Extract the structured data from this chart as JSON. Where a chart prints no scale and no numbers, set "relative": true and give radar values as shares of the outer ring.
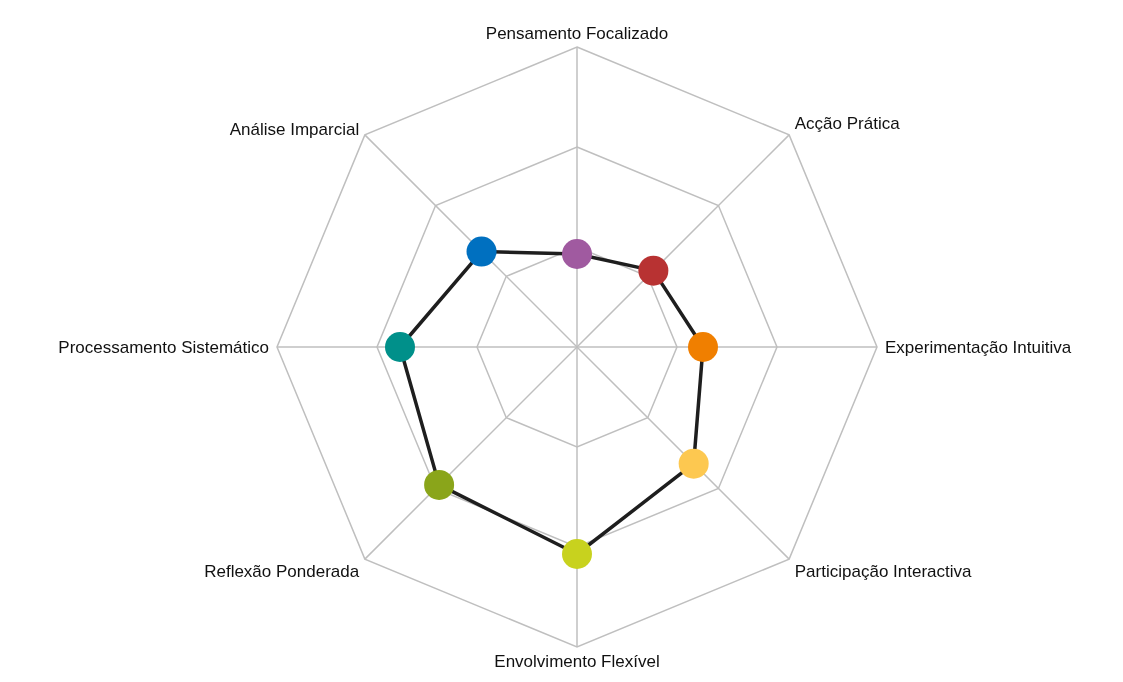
{
  "chart_data": {
    "type": "radar",
    "relative": true,
    "grid": true,
    "marker": "circle",
    "line_style": "solid",
    "categories": [
      "Pensamento Focalizado",
      "Acção Prática",
      "Experimentação Intuitiva",
      "Participação Interactiva",
      "Envolvimento Flexível",
      "Reflexão Ponderada",
      "Processamento Sistemático",
      "Análise Imparcial"
    ],
    "series": [
      {
        "color": "#1e1e1e",
        "colors": [
          "#a05aa0",
          "#b83232",
          "#f07f00",
          "#fdc850",
          "#c8d21e",
          "#8aa51a",
          "#00908a",
          "#0070c0"
        ],
        "values": [
          0.31,
          0.36,
          0.42,
          0.55,
          0.69,
          0.65,
          0.59,
          0.45
        ]
      }
    ]
  }
}
